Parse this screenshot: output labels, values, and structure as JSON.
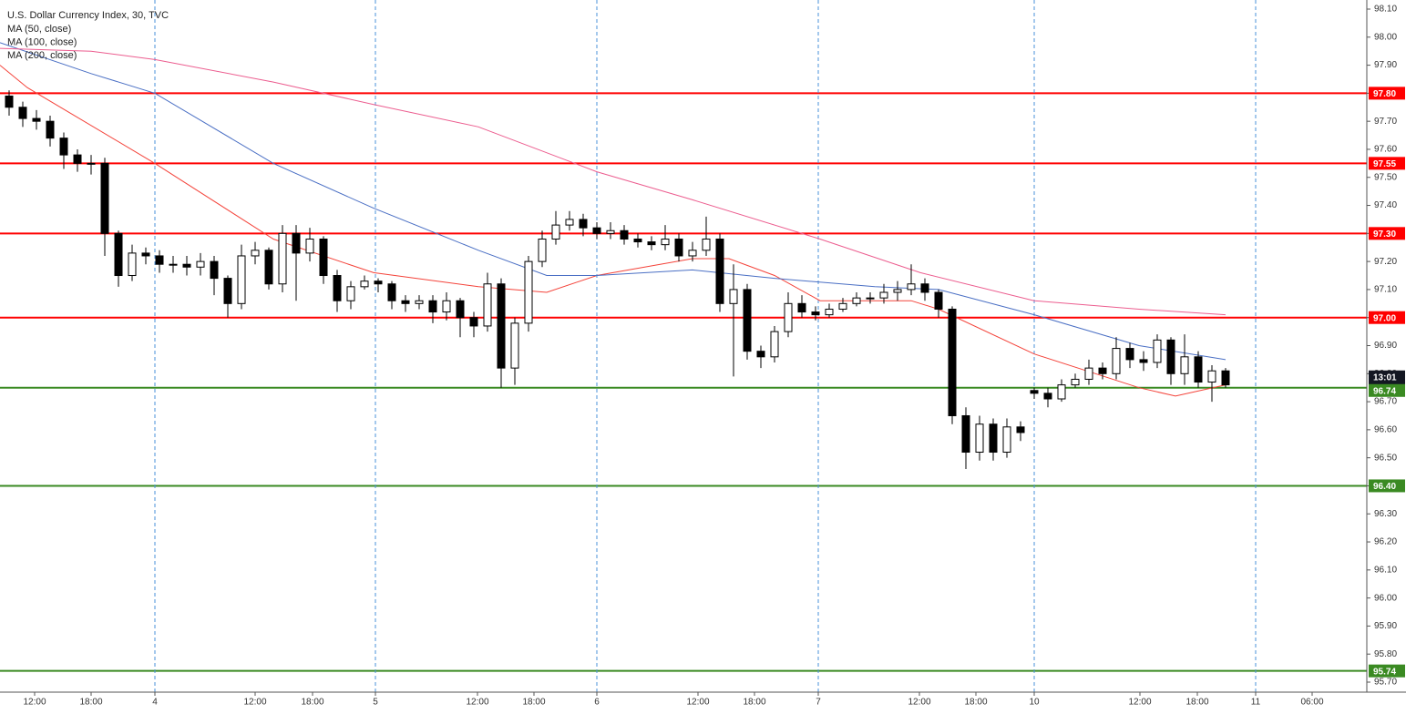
{
  "chart_data": {
    "type": "candlestick",
    "title": "U.S. Dollar Currency Index, 30, TVC",
    "xlim": [
      0,
      300
    ],
    "ylim": [
      95.7,
      98.1
    ],
    "xticks": [
      {
        "value": 7.6,
        "label": "12:00"
      },
      {
        "value": 20,
        "label": "18:00"
      },
      {
        "value": 34,
        "label": "4"
      },
      {
        "value": 56,
        "label": "12:00"
      },
      {
        "value": 68.6,
        "label": "18:00"
      },
      {
        "value": 82.4,
        "label": "5"
      },
      {
        "value": 104.8,
        "label": "12:00"
      },
      {
        "value": 117.2,
        "label": "18:00"
      },
      {
        "value": 131,
        "label": "6"
      },
      {
        "value": 153.2,
        "label": "12:00"
      },
      {
        "value": 165.6,
        "label": "18:00"
      },
      {
        "value": 179.6,
        "label": "7"
      },
      {
        "value": 201.8,
        "label": "12:00"
      },
      {
        "value": 214.2,
        "label": "18:00"
      },
      {
        "value": 227,
        "label": "10"
      },
      {
        "value": 250.2,
        "label": "12:00"
      },
      {
        "value": 262.8,
        "label": "18:00"
      },
      {
        "value": 275.6,
        "label": "11"
      },
      {
        "value": 288,
        "label": "06:00"
      }
    ],
    "yticks": [
      {
        "value": 98.1,
        "label": "98.10"
      },
      {
        "value": 98.0,
        "label": "98.00"
      },
      {
        "value": 97.9,
        "label": "97.90"
      },
      {
        "value": 97.8,
        "label": "97.80"
      },
      {
        "value": 97.7,
        "label": "97.70"
      },
      {
        "value": 97.6,
        "label": "97.60"
      },
      {
        "value": 97.5,
        "label": "97.50"
      },
      {
        "value": 97.4,
        "label": "97.40"
      },
      {
        "value": 97.3,
        "label": "97.30"
      },
      {
        "value": 97.2,
        "label": "97.20"
      },
      {
        "value": 97.1,
        "label": "97.10"
      },
      {
        "value": 97.0,
        "label": "97.00"
      },
      {
        "value": 96.9,
        "label": "96.90"
      },
      {
        "value": 96.8,
        "label": "96.80"
      },
      {
        "value": 96.7,
        "label": "96.70"
      },
      {
        "value": 96.6,
        "label": "96.60"
      },
      {
        "value": 96.5,
        "label": "96.50"
      },
      {
        "value": 96.4,
        "label": "96.40"
      },
      {
        "value": 96.3,
        "label": "96.30"
      },
      {
        "value": 96.2,
        "label": "96.20"
      },
      {
        "value": 96.1,
        "label": "96.10"
      },
      {
        "value": 96.0,
        "label": "96.00"
      },
      {
        "value": 95.9,
        "label": "95.90"
      },
      {
        "value": 95.8,
        "label": "95.80"
      },
      {
        "value": 95.7,
        "label": "95.70"
      }
    ],
    "candles": {
      "up_color": "#ffffff",
      "down_color": "#000000",
      "x": [
        2,
        5,
        8,
        11,
        14,
        17,
        20,
        23,
        26,
        29,
        32,
        35,
        38,
        41,
        44,
        47,
        50,
        53,
        56,
        59,
        62,
        65,
        68,
        71,
        74,
        77,
        80,
        83,
        86,
        89,
        92,
        95,
        98,
        101,
        104,
        107,
        110,
        113,
        116,
        119,
        122,
        125,
        128,
        131,
        134,
        137,
        140,
        143,
        146,
        149,
        152,
        155,
        158,
        161,
        164,
        167,
        170,
        173,
        176,
        179,
        182,
        185,
        188,
        191,
        194,
        197,
        200,
        203,
        206,
        209,
        212,
        215,
        218,
        221,
        224,
        227,
        230,
        233,
        236,
        239,
        242,
        245,
        248,
        251,
        254,
        257,
        260,
        263,
        266,
        269
      ],
      "open": [
        97.79,
        97.75,
        97.71,
        97.7,
        97.64,
        97.58,
        97.55,
        97.55,
        97.3,
        97.15,
        97.23,
        97.22,
        97.19,
        97.19,
        97.18,
        97.2,
        97.14,
        97.05,
        97.22,
        97.24,
        97.12,
        97.3,
        97.23,
        97.28,
        97.15,
        97.06,
        97.11,
        97.13,
        97.12,
        97.06,
        97.05,
        97.06,
        97.02,
        97.06,
        97.0,
        96.97,
        97.12,
        96.82,
        96.98,
        97.2,
        97.28,
        97.33,
        97.35,
        97.32,
        97.3,
        97.31,
        97.28,
        97.27,
        97.26,
        97.28,
        97.22,
        97.24,
        97.28,
        97.05,
        97.1,
        96.88,
        96.86,
        96.95,
        97.05,
        97.02,
        97.01,
        97.03,
        97.05,
        97.07,
        97.07,
        97.09,
        97.1,
        97.12,
        97.09,
        97.03,
        96.65,
        96.52,
        96.62,
        96.52,
        96.61,
        96.74,
        96.73,
        96.71,
        96.76,
        96.78,
        96.82,
        96.8,
        96.89,
        96.85,
        96.84,
        96.92,
        96.8,
        96.86,
        96.77,
        96.81
      ],
      "high": [
        97.81,
        97.77,
        97.74,
        97.72,
        97.66,
        97.6,
        97.58,
        97.57,
        97.31,
        97.26,
        97.25,
        97.24,
        97.22,
        97.22,
        97.23,
        97.22,
        97.15,
        97.26,
        97.27,
        97.25,
        97.33,
        97.33,
        97.32,
        97.29,
        97.17,
        97.13,
        97.15,
        97.14,
        97.13,
        97.08,
        97.08,
        97.08,
        97.09,
        97.07,
        97.02,
        97.16,
        97.14,
        97.0,
        97.22,
        97.31,
        97.38,
        97.38,
        97.37,
        97.34,
        97.34,
        97.33,
        97.3,
        97.29,
        97.33,
        97.3,
        97.27,
        97.36,
        97.3,
        97.19,
        97.12,
        96.9,
        96.97,
        97.09,
        97.08,
        97.04,
        97.05,
        97.07,
        97.09,
        97.09,
        97.12,
        97.13,
        97.19,
        97.14,
        97.1,
        97.04,
        96.68,
        96.65,
        96.64,
        96.64,
        96.63,
        96.75,
        96.75,
        96.78,
        96.8,
        96.85,
        96.84,
        96.93,
        96.91,
        96.88,
        96.94,
        96.93,
        96.94,
        96.88,
        96.83,
        96.82
      ],
      "low": [
        97.72,
        97.68,
        97.67,
        97.61,
        97.53,
        97.52,
        97.51,
        97.22,
        97.11,
        97.13,
        97.19,
        97.16,
        97.16,
        97.15,
        97.15,
        97.08,
        97.0,
        97.03,
        97.19,
        97.1,
        97.09,
        97.06,
        97.2,
        97.12,
        97.02,
        97.03,
        97.1,
        97.09,
        97.03,
        97.02,
        97.03,
        96.98,
        96.99,
        96.93,
        96.93,
        96.95,
        96.75,
        96.76,
        96.95,
        97.18,
        97.26,
        97.31,
        97.29,
        97.28,
        97.28,
        97.26,
        97.25,
        97.24,
        97.24,
        97.2,
        97.2,
        97.22,
        97.02,
        96.79,
        96.85,
        96.82,
        96.84,
        96.93,
        97.0,
        96.99,
        97.0,
        97.02,
        97.04,
        97.05,
        97.05,
        97.06,
        97.08,
        97.06,
        97.0,
        96.62,
        96.46,
        96.49,
        96.49,
        96.5,
        96.56,
        96.71,
        96.68,
        96.7,
        96.75,
        96.76,
        96.78,
        96.78,
        96.82,
        96.81,
        96.82,
        96.76,
        96.76,
        96.75,
        96.7,
        96.75
      ],
      "close": [
        97.75,
        97.71,
        97.7,
        97.64,
        97.58,
        97.55,
        97.55,
        97.3,
        97.15,
        97.23,
        97.22,
        97.19,
        97.19,
        97.18,
        97.2,
        97.14,
        97.05,
        97.22,
        97.24,
        97.12,
        97.3,
        97.23,
        97.28,
        97.15,
        97.06,
        97.11,
        97.13,
        97.12,
        97.06,
        97.05,
        97.06,
        97.02,
        97.06,
        97.0,
        96.97,
        97.12,
        96.82,
        96.98,
        97.2,
        97.28,
        97.33,
        97.35,
        97.32,
        97.3,
        97.31,
        97.28,
        97.27,
        97.26,
        97.28,
        97.22,
        97.24,
        97.28,
        97.05,
        97.1,
        96.88,
        96.86,
        96.95,
        97.05,
        97.02,
        97.01,
        97.03,
        97.05,
        97.07,
        97.07,
        97.09,
        97.1,
        97.12,
        97.09,
        97.03,
        96.65,
        96.52,
        96.62,
        96.52,
        96.61,
        96.59,
        96.73,
        96.71,
        96.76,
        96.78,
        96.82,
        96.8,
        96.89,
        96.85,
        96.84,
        96.92,
        96.8,
        96.86,
        96.77,
        96.81,
        96.76
      ]
    },
    "series": [
      {
        "name": "MA (50, close)",
        "color": "#f4433a",
        "x": [
          0,
          6,
          34,
          60,
          82,
          105,
          120,
          131,
          152,
          160,
          170,
          180,
          200,
          206,
          227,
          250,
          258,
          269
        ],
        "values": [
          97.9,
          97.82,
          97.55,
          97.28,
          97.16,
          97.11,
          97.09,
          97.15,
          97.21,
          97.21,
          97.15,
          97.06,
          97.06,
          97.03,
          96.87,
          96.75,
          96.72,
          96.76
        ]
      },
      {
        "name": "MA (100, close)",
        "color": "#4a6fc4",
        "x": [
          0,
          20,
          34,
          60,
          82,
          105,
          120,
          131,
          152,
          170,
          192,
          206,
          227,
          250,
          269
        ],
        "values": [
          97.98,
          97.87,
          97.8,
          97.55,
          97.39,
          97.24,
          97.15,
          97.15,
          97.17,
          97.14,
          97.11,
          97.1,
          97.01,
          96.9,
          96.85
        ]
      },
      {
        "name": "MA (200, close)",
        "color": "#ec5d8f",
        "x": [
          0,
          20,
          34,
          60,
          82,
          105,
          131,
          152,
          180,
          202,
          227,
          250,
          269
        ],
        "values": [
          97.96,
          97.95,
          97.92,
          97.84,
          97.76,
          97.68,
          97.52,
          97.42,
          97.28,
          97.16,
          97.06,
          97.03,
          97.01
        ]
      }
    ],
    "levels": [
      {
        "value": 97.8,
        "label": "97.80",
        "color": "#ff0000"
      },
      {
        "value": 97.55,
        "color": "#ff0000"
      },
      {
        "value": 97.3,
        "label": "97.30",
        "color": "#ff0000"
      },
      {
        "value": 97.0,
        "label": "97.00",
        "color": "#ff0000"
      },
      {
        "value": 96.75,
        "color": "#3a8a22",
        "tag_color": "#131722"
      },
      {
        "value": 96.4,
        "label": "96.40",
        "color": "#3a8a22"
      },
      {
        "value": 95.74,
        "color": "#3a8a22"
      }
    ],
    "countdown": "13:01",
    "last_price": 96.74,
    "last_price_color": "#3a8a22"
  }
}
